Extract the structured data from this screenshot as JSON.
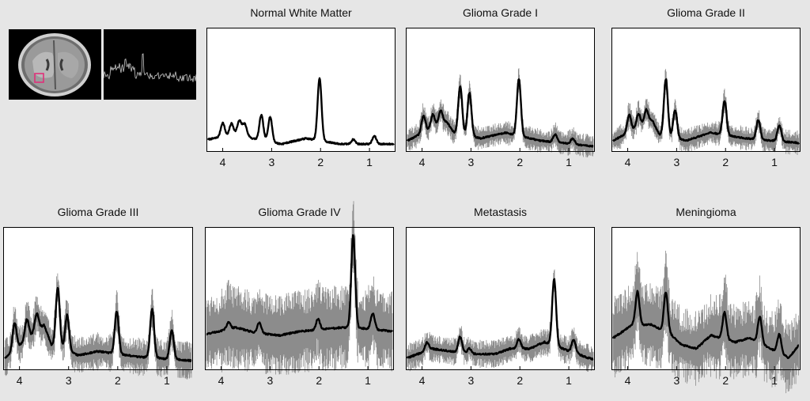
{
  "inset_images": {
    "mri": {
      "icon": "brain-mri-axial-slice-icon",
      "roi_color": "#e0307a"
    },
    "spectrum": {
      "icon": "raw-spectrum-icon",
      "line_color": "#c8c8c8"
    }
  },
  "colors": {
    "mean": "#000000",
    "band": "#8c8c8c",
    "frame": "#000000",
    "panel_bg": "#ffffff",
    "page_bg": "#e6e6e6"
  },
  "chart_data": [
    {
      "type": "line",
      "title": "Normal White Matter",
      "xlim": [
        4.3,
        0.5
      ],
      "x_reversed": true,
      "xticks": [
        4,
        3,
        2,
        1
      ],
      "ylim": [
        0,
        1
      ],
      "grid": false,
      "peaks": [
        [
          4.0,
          0.12
        ],
        [
          3.82,
          0.1
        ],
        [
          3.66,
          0.11
        ],
        [
          3.55,
          0.09
        ],
        [
          3.21,
          0.22
        ],
        [
          3.03,
          0.22
        ],
        [
          2.02,
          0.55
        ],
        [
          1.33,
          0.04
        ],
        [
          0.9,
          0.07
        ]
      ],
      "baseline": [
        [
          4.3,
          0.06
        ],
        [
          3.6,
          0.12
        ],
        [
          3.4,
          0.07
        ],
        [
          2.8,
          0.02
        ],
        [
          2.3,
          0.07
        ],
        [
          1.6,
          0.02
        ],
        [
          0.5,
          0.02
        ]
      ],
      "noise_band": 0.008
    },
    {
      "type": "line",
      "title": "Glioma Grade I",
      "xlim": [
        4.3,
        0.5
      ],
      "x_reversed": true,
      "xticks": [
        4,
        3,
        2,
        1
      ],
      "ylim": [
        0,
        1
      ],
      "grid": false,
      "peaks": [
        [
          3.97,
          0.15
        ],
        [
          3.78,
          0.12
        ],
        [
          3.62,
          0.12
        ],
        [
          3.22,
          0.42
        ],
        [
          3.03,
          0.38
        ],
        [
          2.02,
          0.5
        ],
        [
          1.28,
          0.07
        ],
        [
          0.92,
          0.05
        ]
      ],
      "baseline": [
        [
          4.3,
          0.05
        ],
        [
          3.5,
          0.22
        ],
        [
          3.35,
          0.12
        ],
        [
          2.8,
          0.07
        ],
        [
          2.3,
          0.12
        ],
        [
          1.6,
          0.05
        ],
        [
          0.5,
          0.0
        ]
      ],
      "noise_band": 0.06
    },
    {
      "type": "line",
      "title": "Glioma Grade II",
      "xlim": [
        4.3,
        0.5
      ],
      "x_reversed": true,
      "xticks": [
        4,
        3,
        2,
        1
      ],
      "ylim": [
        0,
        1
      ],
      "grid": false,
      "peaks": [
        [
          3.97,
          0.15
        ],
        [
          3.78,
          0.12
        ],
        [
          3.62,
          0.12
        ],
        [
          3.22,
          0.5
        ],
        [
          3.03,
          0.25
        ],
        [
          2.02,
          0.3
        ],
        [
          1.33,
          0.17
        ],
        [
          0.9,
          0.14
        ]
      ],
      "baseline": [
        [
          4.3,
          0.05
        ],
        [
          3.5,
          0.23
        ],
        [
          3.35,
          0.1
        ],
        [
          2.8,
          0.05
        ],
        [
          2.3,
          0.12
        ],
        [
          1.6,
          0.07
        ],
        [
          0.5,
          0.03
        ]
      ],
      "noise_band": 0.06
    },
    {
      "type": "line",
      "title": "Glioma Grade III",
      "xlim": [
        4.3,
        0.5
      ],
      "x_reversed": true,
      "xticks": [
        4,
        3,
        2,
        1
      ],
      "ylim": [
        0,
        1
      ],
      "grid": false,
      "peaks": [
        [
          4.1,
          0.2
        ],
        [
          3.85,
          0.15
        ],
        [
          3.65,
          0.13
        ],
        [
          3.22,
          0.45
        ],
        [
          3.03,
          0.27
        ],
        [
          2.02,
          0.32
        ],
        [
          1.3,
          0.37
        ],
        [
          0.9,
          0.22
        ]
      ],
      "baseline": [
        [
          4.3,
          0.05
        ],
        [
          3.5,
          0.3
        ],
        [
          3.35,
          0.15
        ],
        [
          2.8,
          0.07
        ],
        [
          2.4,
          0.1
        ],
        [
          1.6,
          0.06
        ],
        [
          0.5,
          0.03
        ]
      ],
      "noise_band": 0.08
    },
    {
      "type": "line",
      "title": "Glioma Grade IV",
      "xlim": [
        4.3,
        0.5
      ],
      "x_reversed": true,
      "xticks": [
        4,
        3,
        2,
        1
      ],
      "ylim": [
        0,
        1
      ],
      "grid": false,
      "peaks": [
        [
          3.85,
          0.05
        ],
        [
          3.22,
          0.08
        ],
        [
          2.02,
          0.08
        ],
        [
          1.3,
          0.7
        ],
        [
          0.9,
          0.12
        ]
      ],
      "baseline": [
        [
          4.3,
          0.23
        ],
        [
          3.7,
          0.28
        ],
        [
          3.3,
          0.24
        ],
        [
          2.8,
          0.22
        ],
        [
          2.4,
          0.25
        ],
        [
          1.8,
          0.27
        ],
        [
          1.5,
          0.28
        ],
        [
          1.0,
          0.27
        ],
        [
          0.5,
          0.25
        ]
      ],
      "noise_band": 0.16
    },
    {
      "type": "line",
      "title": "Metastasis",
      "xlim": [
        4.3,
        0.5
      ],
      "x_reversed": true,
      "xticks": [
        4,
        3,
        2,
        1
      ],
      "ylim": [
        0,
        1
      ],
      "grid": false,
      "peaks": [
        [
          3.9,
          0.06
        ],
        [
          3.22,
          0.12
        ],
        [
          3.03,
          0.04
        ],
        [
          2.02,
          0.07
        ],
        [
          1.3,
          0.5
        ],
        [
          0.9,
          0.1
        ]
      ],
      "baseline": [
        [
          4.3,
          0.05
        ],
        [
          3.8,
          0.12
        ],
        [
          3.4,
          0.1
        ],
        [
          3.0,
          0.08
        ],
        [
          2.5,
          0.08
        ],
        [
          2.2,
          0.12
        ],
        [
          1.8,
          0.12
        ],
        [
          1.5,
          0.17
        ],
        [
          0.6,
          0.05
        ],
        [
          0.5,
          0.04
        ]
      ],
      "noise_band": 0.06
    },
    {
      "type": "line",
      "title": "Meningioma",
      "xlim": [
        4.3,
        0.5
      ],
      "x_reversed": true,
      "xticks": [
        4,
        3,
        2,
        1
      ],
      "ylim": [
        0,
        1
      ],
      "grid": false,
      "peaks": [
        [
          3.8,
          0.25
        ],
        [
          3.22,
          0.3
        ],
        [
          2.02,
          0.2
        ],
        [
          1.3,
          0.2
        ],
        [
          0.9,
          0.14
        ]
      ],
      "baseline": [
        [
          4.3,
          0.2
        ],
        [
          3.9,
          0.3
        ],
        [
          3.5,
          0.3
        ],
        [
          3.1,
          0.22
        ],
        [
          2.9,
          0.15
        ],
        [
          2.6,
          0.12
        ],
        [
          2.3,
          0.22
        ],
        [
          1.8,
          0.17
        ],
        [
          1.5,
          0.2
        ],
        [
          0.7,
          0.05
        ],
        [
          0.5,
          0.15
        ]
      ],
      "noise_band": 0.16
    }
  ]
}
